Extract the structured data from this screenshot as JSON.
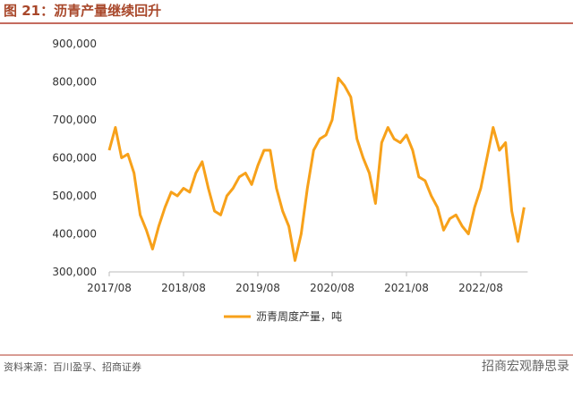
{
  "title": "图 21：沥青产量继续回升",
  "source": "资料来源：百川盈孚、招商证券",
  "watermark": "招商宏观静思录",
  "chart_data": {
    "type": "line",
    "categories": [
      "2017/08",
      null,
      null,
      null,
      null,
      null,
      null,
      null,
      null,
      null,
      null,
      null,
      "2018/08",
      null,
      null,
      null,
      null,
      null,
      null,
      null,
      null,
      null,
      null,
      null,
      "2019/08",
      null,
      null,
      null,
      null,
      null,
      null,
      null,
      null,
      null,
      null,
      null,
      "2020/08",
      null,
      null,
      null,
      null,
      null,
      null,
      null,
      null,
      null,
      null,
      null,
      "2021/08",
      null,
      null,
      null,
      null,
      null,
      null,
      null,
      null,
      null,
      null,
      null,
      "2022/08",
      null,
      null,
      null,
      null,
      null,
      null,
      null
    ],
    "series": [
      {
        "name": "沥青周度产量，吨",
        "color": "#f7a11a",
        "values": [
          620000,
          680000,
          600000,
          610000,
          560000,
          450000,
          410000,
          360000,
          420000,
          470000,
          510000,
          500000,
          520000,
          510000,
          560000,
          590000,
          520000,
          460000,
          450000,
          500000,
          520000,
          550000,
          560000,
          530000,
          580000,
          620000,
          620000,
          520000,
          460000,
          420000,
          330000,
          400000,
          520000,
          620000,
          650000,
          660000,
          700000,
          810000,
          790000,
          760000,
          650000,
          600000,
          560000,
          480000,
          640000,
          680000,
          650000,
          640000,
          660000,
          620000,
          550000,
          540000,
          500000,
          470000,
          410000,
          440000,
          450000,
          420000,
          400000,
          470000,
          520000,
          600000,
          680000,
          620000,
          640000,
          460000,
          380000,
          470000
        ]
      }
    ],
    "ylim": [
      300000,
      900000
    ],
    "yticks": [
      {
        "value": 300000,
        "label": "300,000"
      },
      {
        "value": 400000,
        "label": "400,000"
      },
      {
        "value": 500000,
        "label": "500,000"
      },
      {
        "value": 600000,
        "label": "600,000"
      },
      {
        "value": 700000,
        "label": "700,000"
      },
      {
        "value": 800000,
        "label": "800,000"
      },
      {
        "value": 900000,
        "label": "900,000"
      }
    ],
    "grid": false
  }
}
